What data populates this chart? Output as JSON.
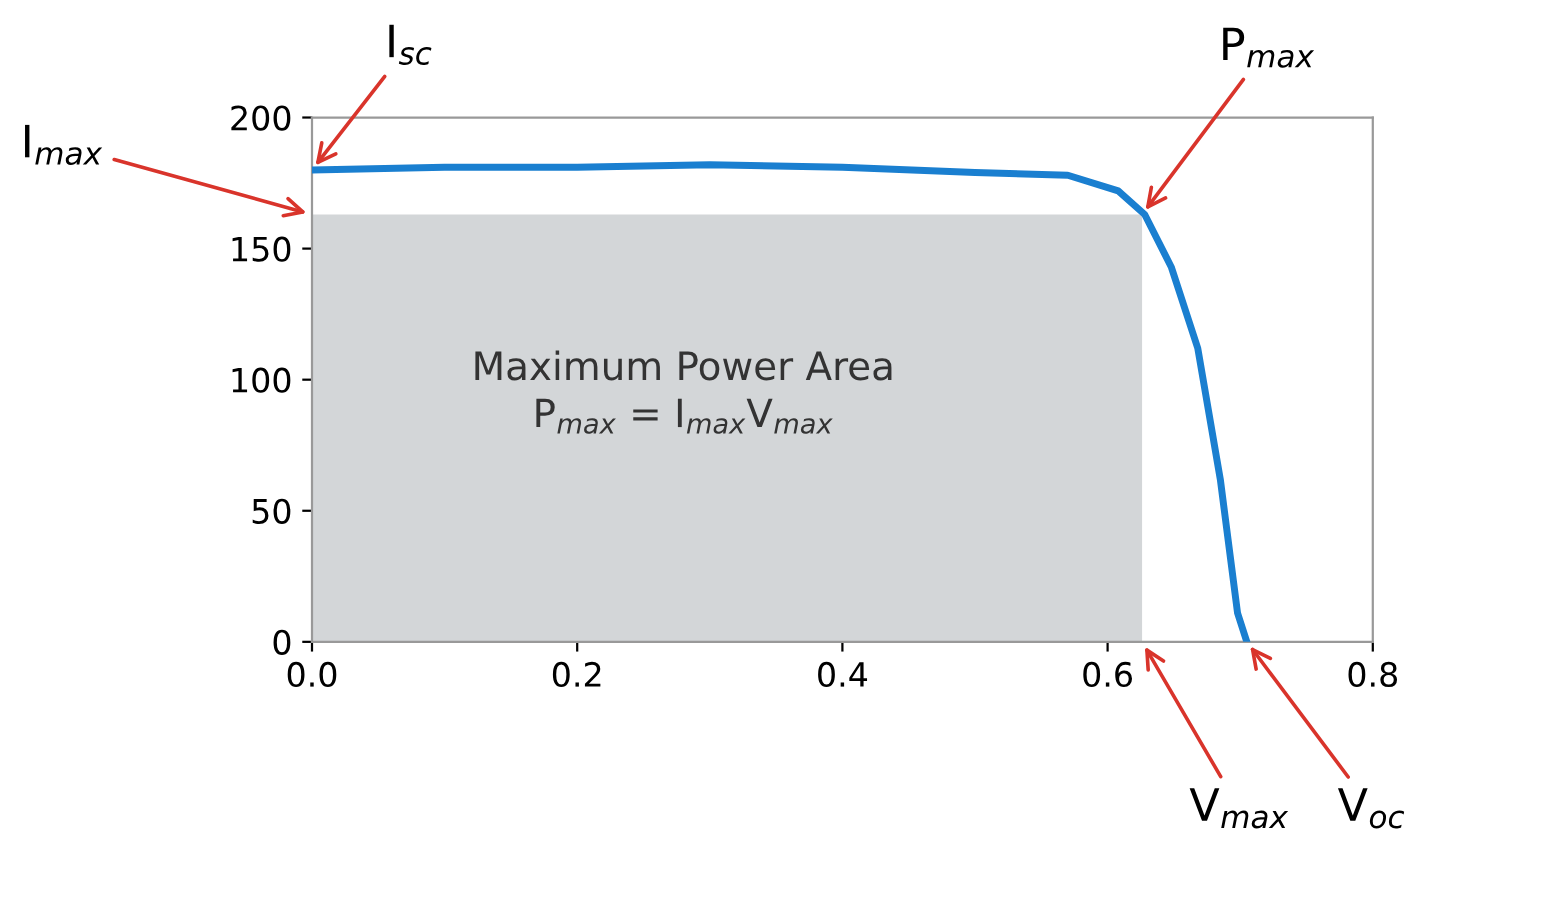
{
  "chart_data": {
    "type": "line",
    "x": [
      0,
      0.1,
      0.2,
      0.3,
      0.4,
      0.5,
      0.57,
      0.608,
      0.628,
      0.648,
      0.668,
      0.685,
      0.698,
      0.705
    ],
    "series": [
      {
        "type": "area",
        "color": "#d3d6d8",
        "x": [
          0,
          0.626
        ],
        "values": [
          163,
          163
        ]
      },
      {
        "color": "#1a7fd0",
        "values": [
          180,
          181,
          181,
          182,
          181,
          179,
          178,
          172,
          163,
          143,
          112,
          62,
          11,
          0
        ]
      }
    ],
    "xlim": [
      0,
      0.8
    ],
    "xticks": [
      {
        "value": 0,
        "label": "0.0"
      },
      0.2,
      0.4,
      0.6,
      0.8
    ],
    "ylim": [
      0,
      200
    ],
    "yticks": [
      0,
      50,
      100,
      150,
      200
    ],
    "grid": false,
    "marker": "none",
    "line_style": "solid",
    "annotations": [
      {
        "text": "I$_{sc}$",
        "x": 0,
        "y": 180
      },
      {
        "text": "I$_{max}$",
        "x": 0,
        "y": 163
      },
      {
        "text": "P$_{max}$",
        "x": 0.626,
        "y": 163
      },
      {
        "text": "V$_{max}$",
        "x": 0.626,
        "y": 0
      },
      {
        "text": "V$_{oc}$",
        "x": 0.705,
        "y": 0
      },
      "Maximum Power Area",
      "P$_{max}$ = I$_{max}$V$_{max}$"
    ]
  }
}
